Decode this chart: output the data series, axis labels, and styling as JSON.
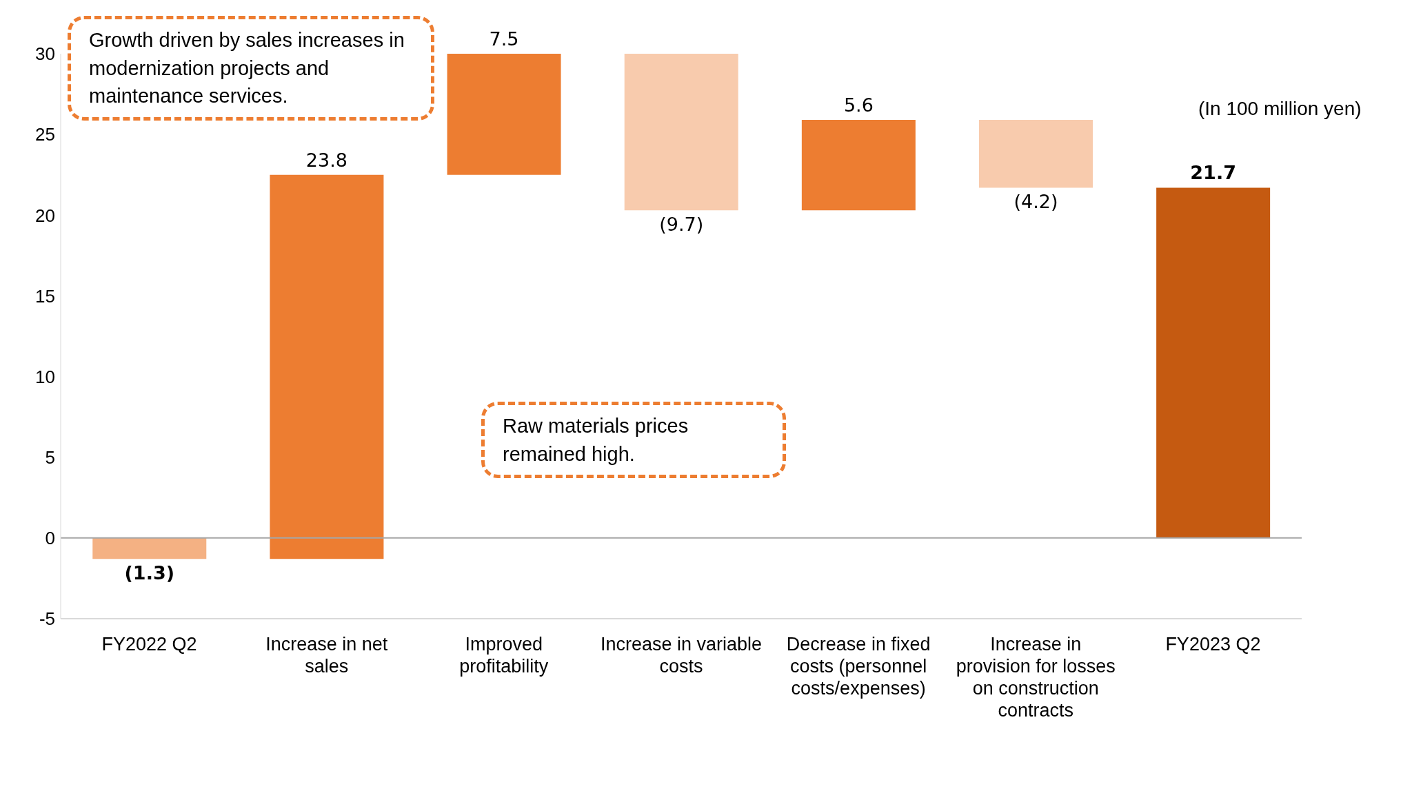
{
  "chart_data": {
    "type": "bar",
    "categories": [
      "FY2022 Q2",
      "Increase in net sales",
      "Improved profitability",
      "Increase in variable costs",
      "Decrease in fixed costs (personnel costs/expenses)",
      "Increase in provision for losses on construction contracts",
      "FY2023 Q2"
    ],
    "values": [
      -1.3,
      23.8,
      7.5,
      -9.7,
      5.6,
      -4.2,
      21.7
    ],
    "base": [
      0,
      -1.3,
      22.5,
      30,
      20.3,
      25.9,
      0
    ],
    "colors": [
      "#f4b183",
      "#ed7d31",
      "#ed7d31",
      "#f8cbad",
      "#ed7d31",
      "#f8cbad",
      "#c55a11"
    ],
    "value_labels": [
      "(1.3)",
      "23.8",
      "7.5",
      "(9.7)",
      "5.6",
      "(4.2)",
      "21.7"
    ],
    "ylim": [
      -5,
      30
    ],
    "yticks": [
      -5,
      0,
      5,
      10,
      15,
      20,
      25,
      30
    ],
    "ref_lines": [
      {
        "axis": "y",
        "value": 0,
        "color": "#a6a6a6"
      }
    ],
    "annotations": [
      "Growth driven by sales increases in modernization projects and maintenance services.",
      "Raw materials prices remained high.",
      "(In 100 million yen)"
    ]
  }
}
